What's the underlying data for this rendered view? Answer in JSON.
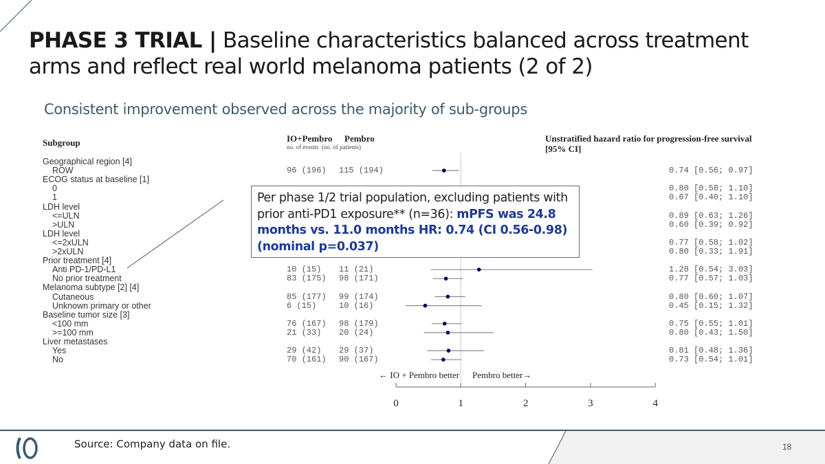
{
  "title": {
    "bold": "PHASE 3 TRIAL |",
    "rest": " Baseline characteristics balanced across treatment arms and reflect real world melanoma patients (2 of 2)"
  },
  "subtitle": "Consistent improvement observed across the majority of sub-groups",
  "callout": {
    "plain": "Per phase 1/2 trial population, excluding patients with prior anti-PD1 exposure** (n=36): ",
    "highlight": "mPFS was 24.8 months vs. 11.0 months HR: 0.74 (CI 0.56-0.98) (nominal p=0.037)"
  },
  "footer": {
    "source": "Source: Company data on file.",
    "page": "18"
  },
  "colors": {
    "accent": "#3d5a6c",
    "point": "#000066",
    "callout_text": "#1f3a93"
  },
  "chart_data": {
    "type": "forest",
    "headers": {
      "subgroup": "Subgroup",
      "arm1": "IO+Pembro",
      "arm2": "Pembro",
      "counts_note": "no. of events  (no. of patients)",
      "hr_line1": "Unstratified hazard ratio for progression-free survival",
      "hr_line2": "[95% CI]"
    },
    "direction_left": "← IO + Pembro better",
    "direction_right": "Pembro better→",
    "xlim": [
      0,
      4
    ],
    "reference_line": 1,
    "ticks": [
      "0",
      "1",
      "2",
      "3",
      "4"
    ],
    "rows": [
      {
        "label": "Geographical region [4]",
        "header": true
      },
      {
        "label": "ROW",
        "arm1": "96 (196)",
        "arm2": "115 (194)",
        "hr": 0.74,
        "lo": 0.56,
        "hi": 0.97,
        "text": "0.74 [0.56; 0.97]"
      },
      {
        "label": "ECOG status at baseline [1]",
        "header": true
      },
      {
        "label": "0",
        "hr": 0.8,
        "lo": 0.58,
        "hi": 1.1,
        "text": "0.80 [0.58; 1.10]"
      },
      {
        "label": "1",
        "hr": 0.67,
        "lo": 0.4,
        "hi": 1.1,
        "text": "0.67 [0.40; 1.10]"
      },
      {
        "label": "LDH level",
        "header": true
      },
      {
        "label": "<=ULN",
        "hr": 0.89,
        "lo": 0.63,
        "hi": 1.26,
        "text": "0.89 [0.63; 1.26]"
      },
      {
        "label": ">ULN",
        "hr": 0.6,
        "lo": 0.39,
        "hi": 0.92,
        "text": "0.60 [0.39; 0.92]"
      },
      {
        "label": "LDH level",
        "header": true
      },
      {
        "label": "<=2xULN",
        "hr": 0.77,
        "lo": 0.58,
        "hi": 1.02,
        "text": "0.77 [0.58; 1.02]"
      },
      {
        "label": ">2xULN",
        "hr": 0.8,
        "lo": 0.33,
        "hi": 1.91,
        "text": "0.80 [0.33; 1.91]"
      },
      {
        "label": "Prior treatment [4]",
        "header": true
      },
      {
        "label": "Anti PD-1/PD-L1",
        "arm1": "10 (15)",
        "arm2": "11 (21)",
        "hr": 1.28,
        "lo": 0.54,
        "hi": 3.03,
        "text": "1.28 [0.54; 3.03]"
      },
      {
        "label": "No prior treatment",
        "arm1": "83 (175)",
        "arm2": "98 (171)",
        "hr": 0.77,
        "lo": 0.57,
        "hi": 1.03,
        "text": "0.77 [0.57; 1.03]"
      },
      {
        "label": "Melanoma subtype [2] [4]",
        "header": true
      },
      {
        "label": "Cutaneous",
        "arm1": "85 (177)",
        "arm2": "99 (174)",
        "hr": 0.8,
        "lo": 0.6,
        "hi": 1.07,
        "text": "0.80 [0.60; 1.07]"
      },
      {
        "label": "Unknown primary or other",
        "arm1": "6 (15)",
        "arm2": "10 (16)",
        "hr": 0.45,
        "lo": 0.15,
        "hi": 1.32,
        "text": "0.45 [0.15; 1.32]"
      },
      {
        "label": "Baseline tumor size [3]",
        "header": true
      },
      {
        "label": "<100 mm",
        "arm1": "76 (167)",
        "arm2": "98 (179)",
        "hr": 0.75,
        "lo": 0.55,
        "hi": 1.01,
        "text": "0.75 [0.55; 1.01]"
      },
      {
        "label": ">=100 mm",
        "arm1": "21 (33)",
        "arm2": "20 (24)",
        "hr": 0.8,
        "lo": 0.43,
        "hi": 1.5,
        "text": "0.80 [0.43; 1.50]"
      },
      {
        "label": "Liver metastases",
        "header": true
      },
      {
        "label": "Yes",
        "arm1": "29 (42)",
        "arm2": "29 (37)",
        "hr": 0.81,
        "lo": 0.48,
        "hi": 1.36,
        "text": "0.81 [0.48; 1.36]"
      },
      {
        "label": "No",
        "arm1": "70 (161)",
        "arm2": "90 (167)",
        "hr": 0.73,
        "lo": 0.54,
        "hi": 1.01,
        "text": "0.73 [0.54; 1.01]"
      }
    ]
  }
}
